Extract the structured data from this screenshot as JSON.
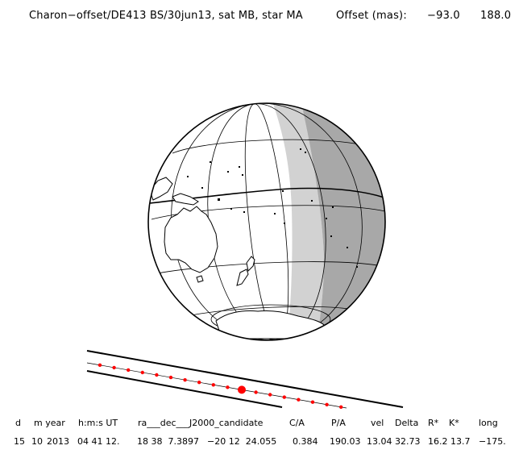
{
  "header": {
    "title": "Charon−offset/DE413 BS/30jun13, sat MB, star MA",
    "offset_label": "Offset (mas):",
    "offset_x": "−93.0",
    "offset_y": "188.0"
  },
  "table": {
    "headers": {
      "d": "d",
      "m_year": "m year",
      "hms_ut": "h:m:s UT",
      "ra_dec": "ra___dec___J2000_candidate",
      "ca": "C/A",
      "pa": "P/A",
      "vel": "vel",
      "delta": "Delta",
      "rstar": "R*",
      "kstar": "K*",
      "long": "long"
    },
    "values": {
      "day": "15",
      "month": "10",
      "year": "2013",
      "time": "04 41 12.",
      "ra": "18 38  7.3897",
      "dec": "−20 12  24.055",
      "ca": "0.384",
      "pa": "190.03",
      "vel": "13.04",
      "delta": "32.73",
      "rstar": "16.2",
      "kstar": "13.7",
      "long": "−175."
    }
  },
  "colors": {
    "night_band": "#a8a8a8",
    "twilight_band": "#d2d2d2",
    "track_dots": "#ff0000",
    "lines": "#000000"
  }
}
